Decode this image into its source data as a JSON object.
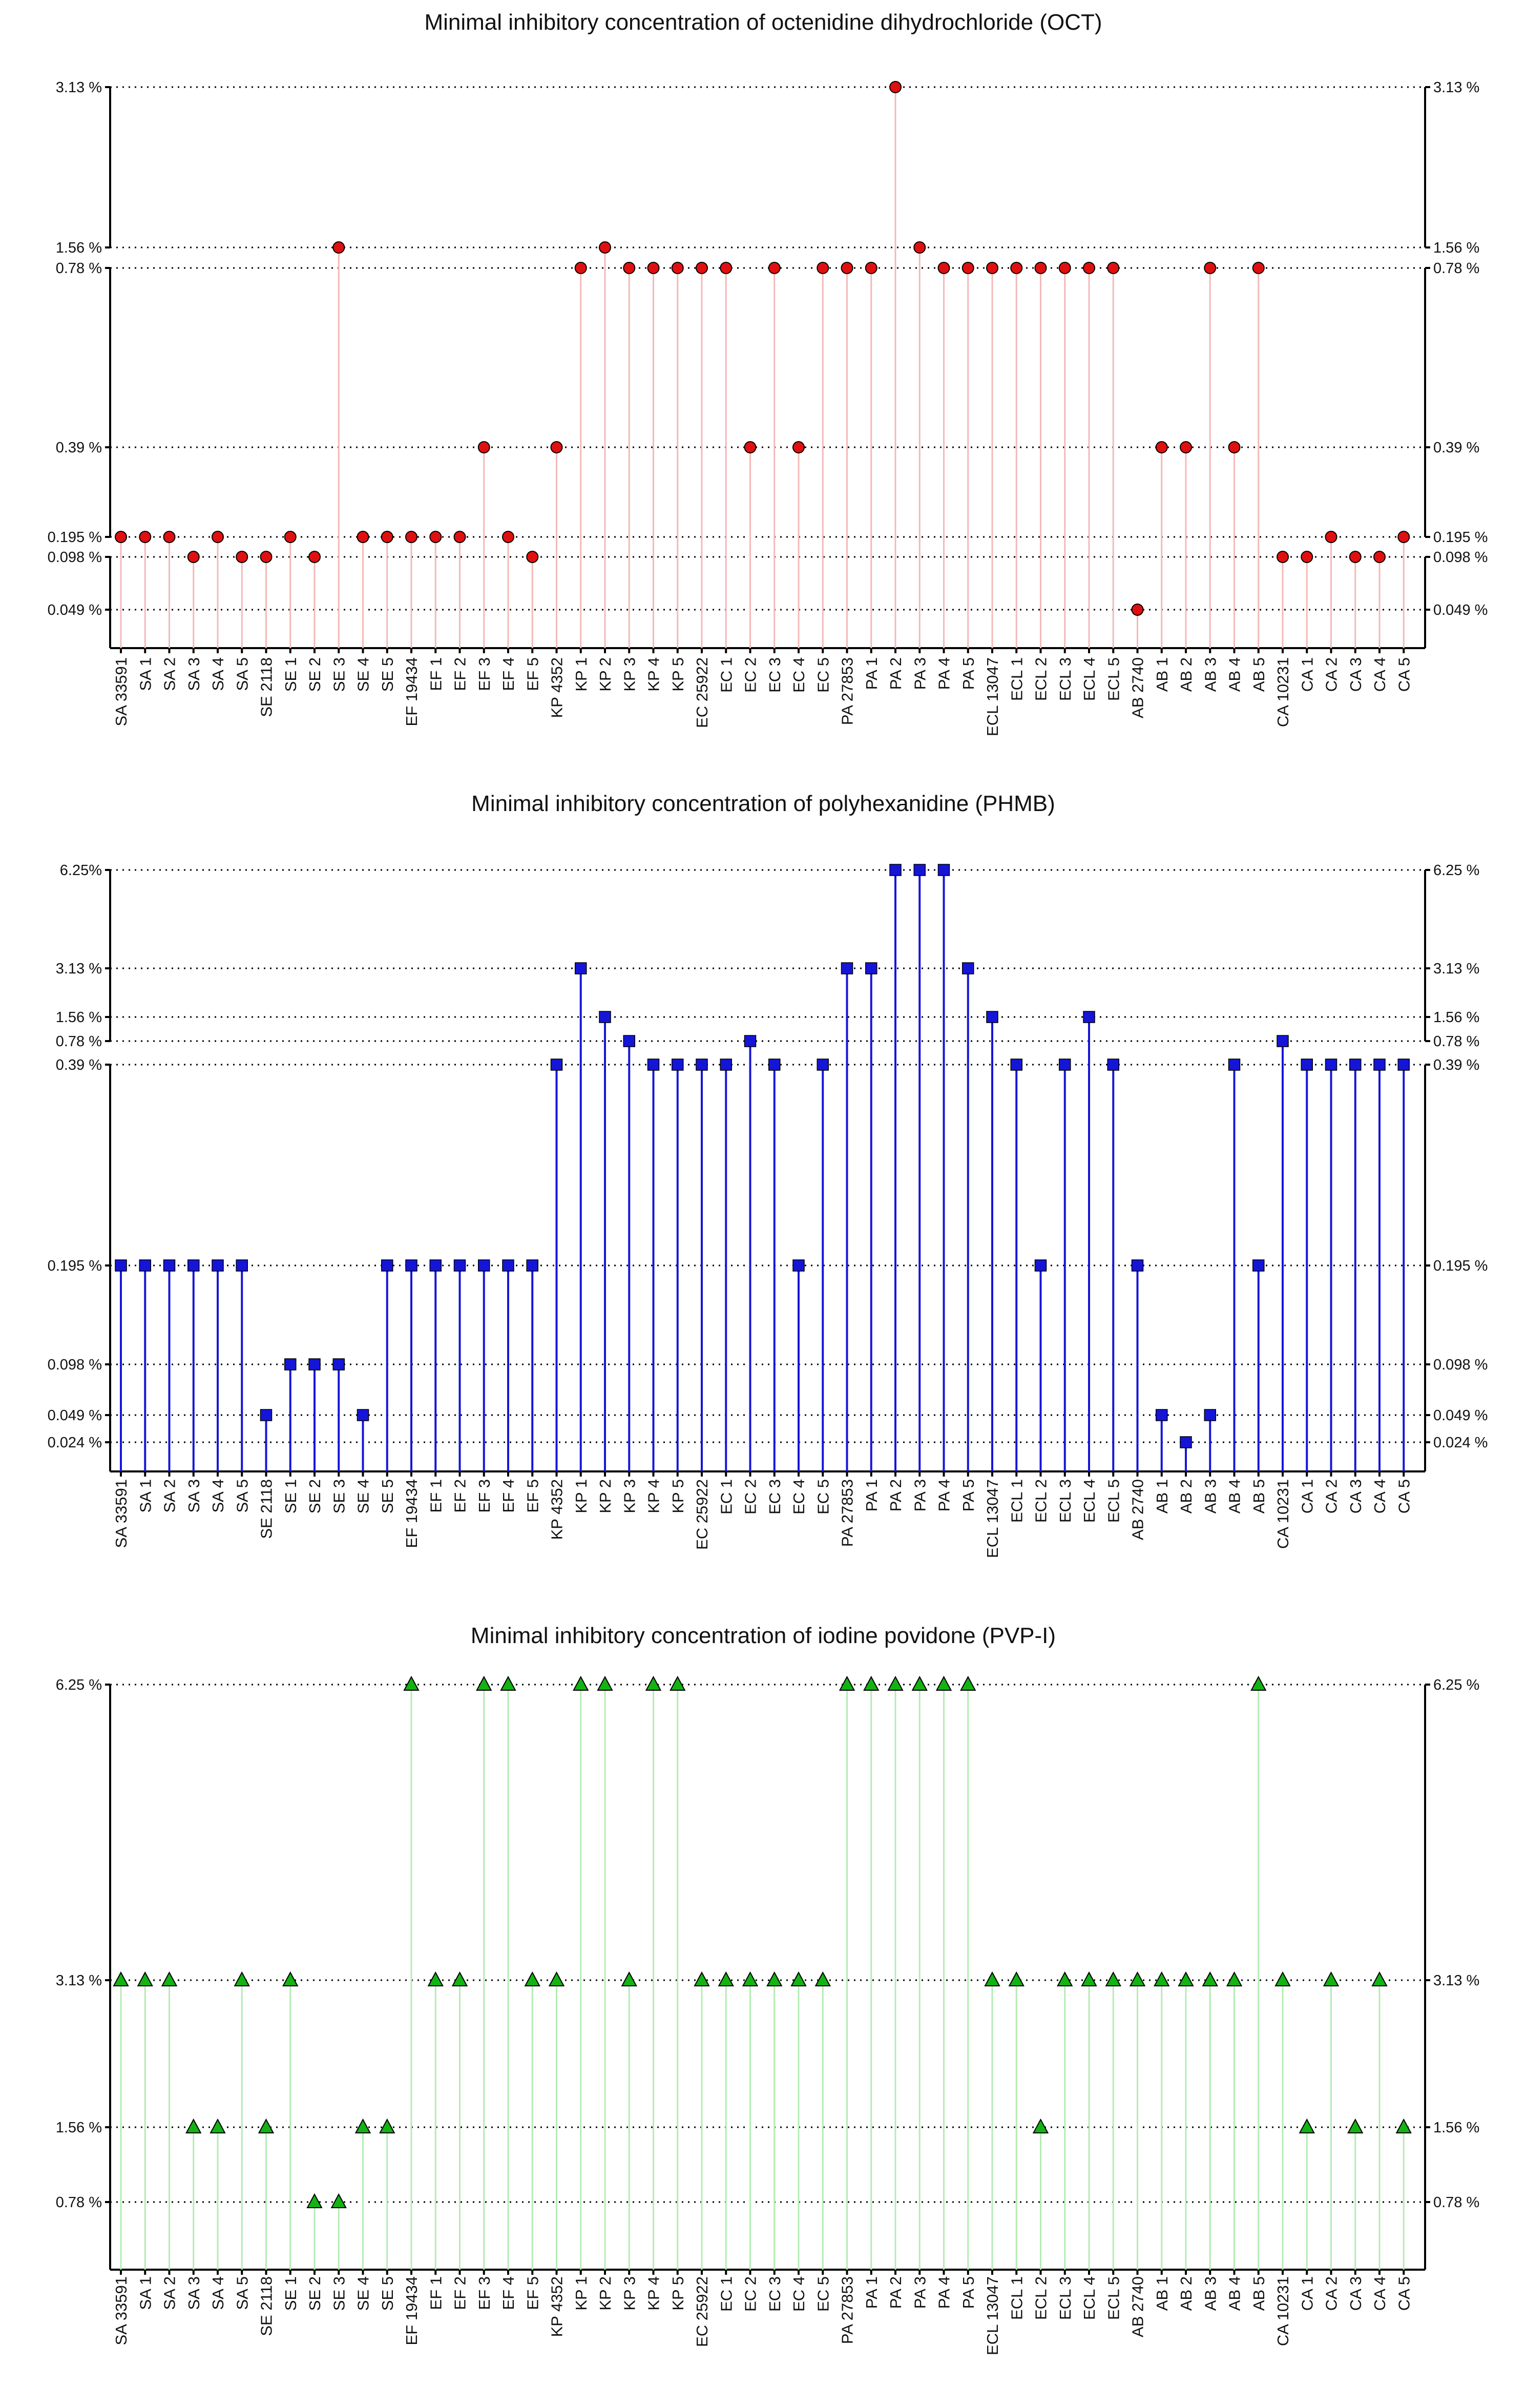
{
  "chart_data": [
    {
      "type": "lollipop",
      "title": "Minimal inhibitory concentration of octenidine dihydrochloride (OCT)",
      "marker": "circle",
      "color": "#e01010",
      "stem_color": "#f4b9b9",
      "ticks": [
        {
          "value": 0.049,
          "label": "0.049 %"
        },
        {
          "value": 0.098,
          "label": "0.098 %"
        },
        {
          "value": 0.195,
          "label": "0.195 %"
        },
        {
          "value": 0.39,
          "label": "0.39 %"
        },
        {
          "value": 0.78,
          "label": "0.78 %"
        },
        {
          "value": 1.56,
          "label": "1.56 %"
        },
        {
          "value": 3.13,
          "label": "3.13 %"
        }
      ],
      "categories": [
        "SA 33591",
        "SA 1",
        "SA 2",
        "SA 3",
        "SA 4",
        "SA 5",
        "SE 2118",
        "SE 1",
        "SE 2",
        "SE 3",
        "SE 4",
        "SE 5",
        "EF 19434",
        "EF 1",
        "EF 2",
        "EF 3",
        "EF 4",
        "EF 5",
        "KP 4352",
        "KP 1",
        "KP 2",
        "KP 3",
        "KP 4",
        "KP 5",
        "EC 25922",
        "EC 1",
        "EC 2",
        "EC 3",
        "EC 4",
        "EC 5",
        "PA 27853",
        "PA 1",
        "PA 2",
        "PA 3",
        "PA 4",
        "PA 5",
        "ECL 13047",
        "ECL 1",
        "ECL 2",
        "ECL 3",
        "ECL 4",
        "ECL 5",
        "AB 2740",
        "AB 1",
        "AB 2",
        "AB 3",
        "AB 4",
        "AB 5",
        "CA 10231",
        "CA 1",
        "CA 2",
        "CA 3",
        "CA 4",
        "CA 5"
      ],
      "values": [
        0.195,
        0.195,
        0.195,
        0.098,
        0.195,
        0.098,
        0.098,
        0.195,
        0.098,
        1.56,
        0.195,
        0.195,
        0.195,
        0.195,
        0.195,
        0.39,
        0.195,
        0.098,
        0.39,
        0.78,
        1.56,
        0.78,
        0.78,
        0.78,
        0.78,
        0.78,
        0.39,
        0.78,
        0.39,
        0.78,
        0.78,
        0.78,
        3.13,
        1.56,
        0.78,
        0.78,
        0.78,
        0.78,
        0.78,
        0.78,
        0.78,
        0.78,
        0.049,
        0.39,
        0.39,
        0.78,
        0.39,
        0.78,
        0.098,
        0.098,
        0.195,
        0.098,
        0.098,
        0.195
      ]
    },
    {
      "type": "lollipop",
      "title": "Minimal inhibitory concentration of polyhexanidine (PHMB)",
      "marker": "square",
      "color": "#1515d8",
      "stem_color": "#1515d8",
      "ticks": [
        {
          "value": 0.024,
          "label": "0.024 %"
        },
        {
          "value": 0.049,
          "label": "0.049 %"
        },
        {
          "value": 0.098,
          "label": "0.098 %"
        },
        {
          "value": 0.195,
          "label": "0.195 %"
        },
        {
          "value": 0.39,
          "label": "0.39 %"
        },
        {
          "value": 0.78,
          "label": "0.78 %"
        },
        {
          "value": 1.56,
          "label": "1.56 %"
        },
        {
          "value": 3.13,
          "label": "3.13 %"
        },
        {
          "value": 6.25,
          "label": "6.25 %",
          "left_label": "6.25%"
        }
      ],
      "categories": [
        "SA 33591",
        "SA 1",
        "SA 2",
        "SA 3",
        "SA 4",
        "SA 5",
        "SE 2118",
        "SE 1",
        "SE 2",
        "SE 3",
        "SE 4",
        "SE 5",
        "EF 19434",
        "EF 1",
        "EF 2",
        "EF 3",
        "EF 4",
        "EF 5",
        "KP 4352",
        "KP 1",
        "KP 2",
        "KP 3",
        "KP 4",
        "KP 5",
        "EC 25922",
        "EC 1",
        "EC 2",
        "EC 3",
        "EC 4",
        "EC 5",
        "PA 27853",
        "PA 1",
        "PA 2",
        "PA 3",
        "PA 4",
        "PA 5",
        "ECL 13047",
        "ECL 1",
        "ECL 2",
        "ECL 3",
        "ECL 4",
        "ECL 5",
        "AB 2740",
        "AB 1",
        "AB 2",
        "AB 3",
        "AB 4",
        "AB 5",
        "CA 10231",
        "CA 1",
        "CA 2",
        "CA 3",
        "CA 4",
        "CA 5"
      ],
      "values": [
        0.195,
        0.195,
        0.195,
        0.195,
        0.195,
        0.195,
        0.049,
        0.098,
        0.098,
        0.098,
        0.049,
        0.195,
        0.195,
        0.195,
        0.195,
        0.195,
        0.195,
        0.195,
        0.39,
        3.13,
        1.56,
        0.78,
        0.39,
        0.39,
        0.39,
        0.39,
        0.78,
        0.39,
        0.195,
        0.39,
        3.13,
        3.13,
        6.25,
        6.25,
        6.25,
        3.13,
        1.56,
        0.39,
        0.195,
        0.39,
        1.56,
        0.39,
        0.195,
        0.049,
        0.024,
        0.049,
        0.39,
        0.195,
        0.78,
        0.39,
        0.39,
        0.39,
        0.39,
        0.39
      ]
    },
    {
      "type": "lollipop",
      "title": "Minimal inhibitory concentration of iodine povidone (PVP-I)",
      "marker": "triangle",
      "color": "#13b313",
      "stem_color": "#b4ecb4",
      "ticks": [
        {
          "value": 0.78,
          "label": "0.78 %"
        },
        {
          "value": 1.56,
          "label": "1.56 %"
        },
        {
          "value": 3.13,
          "label": "3.13 %"
        },
        {
          "value": 6.25,
          "label": "6.25 %"
        }
      ],
      "categories": [
        "SA 33591",
        "SA 1",
        "SA 2",
        "SA 3",
        "SA 4",
        "SA 5",
        "SE 2118",
        "SE 1",
        "SE 2",
        "SE 3",
        "SE 4",
        "SE 5",
        "EF 19434",
        "EF 1",
        "EF 2",
        "EF 3",
        "EF 4",
        "EF 5",
        "KP 4352",
        "KP 1",
        "KP 2",
        "KP 3",
        "KP 4",
        "KP 5",
        "EC 25922",
        "EC 1",
        "EC 2",
        "EC 3",
        "EC 4",
        "EC 5",
        "PA 27853",
        "PA 1",
        "PA 2",
        "PA 3",
        "PA 4",
        "PA 5",
        "ECL 13047",
        "ECL 1",
        "ECL 2",
        "ECL 3",
        "ECL 4",
        "ECL 5",
        "AB 2740",
        "AB 1",
        "AB 2",
        "AB 3",
        "AB 4",
        "AB 5",
        "CA 10231",
        "CA 1",
        "CA 2",
        "CA 3",
        "CA 4",
        "CA 5"
      ],
      "values": [
        3.13,
        3.13,
        3.13,
        1.56,
        1.56,
        3.13,
        1.56,
        3.13,
        0.78,
        0.78,
        1.56,
        1.56,
        6.25,
        3.13,
        3.13,
        6.25,
        6.25,
        3.13,
        3.13,
        6.25,
        6.25,
        3.13,
        6.25,
        6.25,
        3.13,
        3.13,
        3.13,
        3.13,
        3.13,
        3.13,
        6.25,
        6.25,
        6.25,
        6.25,
        6.25,
        6.25,
        3.13,
        3.13,
        1.56,
        3.13,
        3.13,
        3.13,
        3.13,
        3.13,
        3.13,
        3.13,
        3.13,
        6.25,
        3.13,
        1.56,
        3.13,
        1.56,
        3.13,
        1.56
      ]
    }
  ]
}
